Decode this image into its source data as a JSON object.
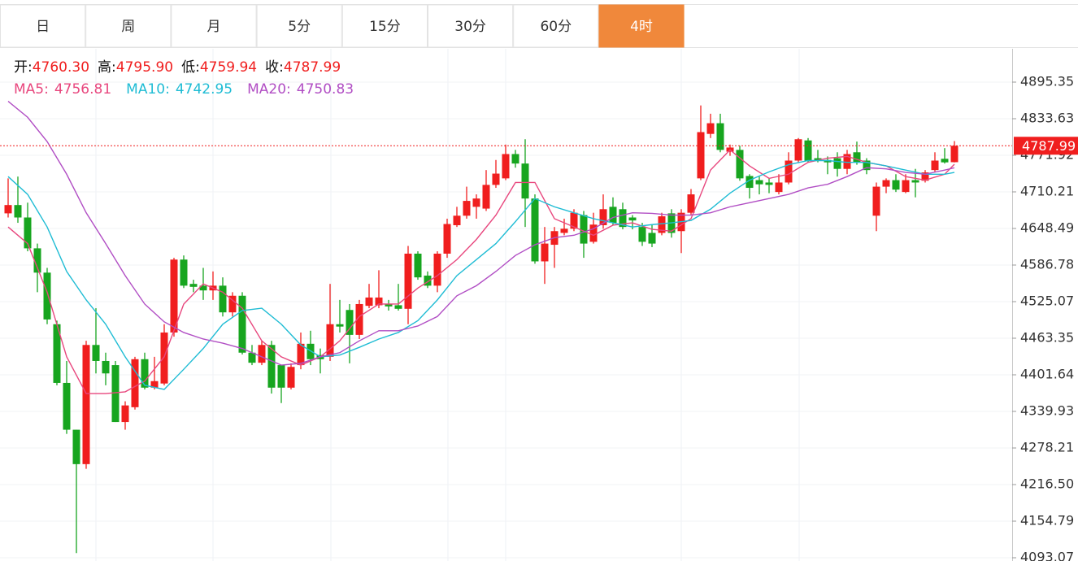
{
  "tabs": {
    "items": [
      "日",
      "周",
      "月",
      "5分",
      "15分",
      "30分",
      "60分",
      "4时"
    ],
    "active": 7,
    "active_color": "#f0883b"
  },
  "chart_data": {
    "type": "candlestick",
    "info": [
      {
        "label": "开:",
        "value": "4760.30"
      },
      {
        "label": "高:",
        "value": "4795.90"
      },
      {
        "label": "低:",
        "value": "4759.94"
      },
      {
        "label": "收:",
        "value": "4787.99"
      }
    ],
    "up_color": "#f01e1e",
    "down_color": "#17a51f",
    "candles": {
      "open": [
        4674,
        4688,
        4667,
        4615,
        4574,
        4487,
        4388,
        4309,
        4251,
        4452,
        4425,
        4418,
        4322,
        4347,
        4428,
        4380,
        4387,
        4473,
        4596,
        4555,
        4552,
        4544,
        4552,
        4507,
        4535,
        4439,
        4422,
        4452,
        4418,
        4380,
        4418,
        4454,
        4435,
        4432,
        4487,
        4511,
        4469,
        4518,
        4519,
        4521,
        4519,
        4513,
        4606,
        4569,
        4552,
        4606,
        4654,
        4670,
        4685,
        4682,
        4722,
        4733,
        4774,
        4758,
        4699,
        4593,
        4621,
        4641,
        4648,
        4671,
        4626,
        4654,
        4685,
        4681,
        4667,
        4651,
        4641,
        4641,
        4674,
        4644,
        4675,
        4733,
        4808,
        4826,
        4778,
        4781,
        4737,
        4730,
        4726,
        4710,
        4726,
        4763,
        4797,
        4767,
        4764,
        4767,
        4749,
        4777,
        4763,
        4670,
        4719,
        4730,
        4710,
        4730,
        4729,
        4747,
        4766,
        4760.3
      ],
      "high": [
        4733,
        4736,
        4692,
        4623,
        4582,
        4493,
        4425,
        4309,
        4459,
        4514,
        4439,
        4425,
        4357,
        4432,
        4439,
        4432,
        4487,
        4599,
        4603,
        4562,
        4582,
        4576,
        4566,
        4541,
        4541,
        4452,
        4459,
        4459,
        4418,
        4421,
        4473,
        4476,
        4446,
        4555,
        4528,
        4521,
        4528,
        4555,
        4578,
        4528,
        4555,
        4619,
        4610,
        4576,
        4610,
        4665,
        4685,
        4719,
        4706,
        4747,
        4764,
        4790,
        4781,
        4799,
        4706,
        4651,
        4651,
        4665,
        4681,
        4678,
        4675,
        4706,
        4701,
        4692,
        4671,
        4658,
        4654,
        4675,
        4681,
        4681,
        4715,
        4856,
        4842,
        4842,
        4790,
        4788,
        4740,
        4736,
        4733,
        4740,
        4777,
        4801,
        4801,
        4781,
        4770,
        4777,
        4781,
        4795,
        4767,
        4726,
        4733,
        4740,
        4740,
        4749,
        4747,
        4777,
        4784,
        4795.9
      ],
      "low": [
        4667,
        4658,
        4610,
        4541,
        4487,
        4384,
        4302,
        4101,
        4243,
        4404,
        4384,
        4322,
        4309,
        4343,
        4377,
        4377,
        4384,
        4466,
        4548,
        4541,
        4528,
        4528,
        4500,
        4500,
        4436,
        4418,
        4418,
        4370,
        4354,
        4377,
        4411,
        4418,
        4404,
        4425,
        4473,
        4421,
        4462,
        4514,
        4514,
        4510,
        4510,
        4487,
        4562,
        4548,
        4541,
        4599,
        4651,
        4665,
        4665,
        4678,
        4717,
        4730,
        4751,
        4651,
        4589,
        4555,
        4582,
        4637,
        4644,
        4599,
        4623,
        4648,
        4654,
        4647,
        4647,
        4619,
        4617,
        4637,
        4633,
        4607,
        4671,
        4730,
        4801,
        4777,
        4771,
        4729,
        4699,
        4706,
        4708,
        4706,
        4723,
        4760,
        4760,
        4760,
        4740,
        4736,
        4740,
        4756,
        4740,
        4644,
        4708,
        4710,
        4708,
        4701,
        4726,
        4744,
        4758,
        4759.94
      ],
      "close": [
        4688,
        4667,
        4615,
        4574,
        4495,
        4388,
        4309,
        4251,
        4452,
        4425,
        4404,
        4322,
        4350,
        4428,
        4380,
        4391,
        4473,
        4596,
        4552,
        4550,
        4544,
        4552,
        4507,
        4535,
        4439,
        4422,
        4452,
        4380,
        4380,
        4415,
        4454,
        4428,
        4428,
        4487,
        4483,
        4469,
        4521,
        4532,
        4532,
        4517,
        4513,
        4606,
        4566,
        4552,
        4606,
        4656,
        4670,
        4695,
        4699,
        4722,
        4741,
        4774,
        4758,
        4699,
        4593,
        4623,
        4644,
        4648,
        4675,
        4623,
        4655,
        4681,
        4658,
        4651,
        4662,
        4626,
        4623,
        4669,
        4641,
        4675,
        4706,
        4811,
        4826,
        4781,
        4785,
        4733,
        4717,
        4723,
        4722,
        4726,
        4763,
        4799,
        4763,
        4763,
        4760,
        4749,
        4774,
        4760,
        4747,
        4719,
        4730,
        4714,
        4730,
        4726,
        4743,
        4763,
        4760,
        4787.99
      ]
    },
    "series": [
      {
        "name": "MA5:",
        "legend_value": "4756.81",
        "color": "#e8477e",
        "x": [
          0,
          2,
          4,
          6,
          8,
          10,
          12,
          14,
          16,
          18,
          20,
          22,
          24,
          26,
          28,
          30,
          32,
          34,
          36,
          38,
          40,
          42,
          44,
          46,
          48,
          50,
          52,
          54,
          56,
          58,
          60,
          62,
          64,
          66,
          68,
          70,
          72,
          74,
          76,
          78,
          80,
          82,
          84,
          86,
          88,
          90,
          92,
          94,
          96,
          97
        ],
        "values": [
          4651,
          4623,
          4541,
          4432,
          4370,
          4370,
          4373,
          4391,
          4432,
          4521,
          4555,
          4541,
          4514,
          4459,
          4432,
          4418,
          4432,
          4459,
          4500,
          4521,
          4521,
          4548,
          4569,
          4596,
          4630,
          4671,
          4726,
          4726,
          4665,
          4651,
          4637,
          4654,
          4658,
          4647,
          4644,
          4665,
          4747,
          4781,
          4754,
          4733,
          4740,
          4760,
          4767,
          4770,
          4760,
          4754,
          4736,
          4730,
          4740,
          4756.81
        ]
      },
      {
        "name": "MA10:",
        "legend_value": "4742.95",
        "color": "#1fbcd4",
        "x": [
          0,
          2,
          4,
          6,
          8,
          10,
          12,
          14,
          16,
          18,
          20,
          22,
          24,
          26,
          28,
          30,
          32,
          34,
          36,
          38,
          40,
          42,
          44,
          46,
          48,
          50,
          52,
          54,
          56,
          58,
          60,
          62,
          64,
          66,
          68,
          70,
          72,
          74,
          76,
          78,
          80,
          82,
          84,
          86,
          88,
          90,
          92,
          94,
          96,
          97
        ],
        "values": [
          4736,
          4706,
          4651,
          4576,
          4528,
          4487,
          4432,
          4384,
          4377,
          4411,
          4446,
          4487,
          4510,
          4514,
          4487,
          4452,
          4432,
          4435,
          4448,
          4462,
          4473,
          4493,
          4528,
          4569,
          4596,
          4623,
          4660,
          4699,
          4685,
          4675,
          4665,
          4658,
          4651,
          4655,
          4658,
          4662,
          4681,
          4708,
          4730,
          4744,
          4756,
          4763,
          4763,
          4760,
          4760,
          4754,
          4747,
          4740,
          4740,
          4742.95
        ]
      },
      {
        "name": "MA20:",
        "legend_value": "4750.83",
        "color": "#b14ec4",
        "x": [
          0,
          2,
          4,
          6,
          8,
          10,
          12,
          14,
          16,
          18,
          20,
          22,
          24,
          26,
          28,
          30,
          32,
          34,
          36,
          38,
          40,
          42,
          44,
          46,
          48,
          50,
          52,
          54,
          56,
          58,
          60,
          62,
          64,
          66,
          68,
          70,
          72,
          74,
          76,
          78,
          80,
          82,
          84,
          86,
          88,
          90,
          92,
          94,
          96,
          97
        ],
        "values": [
          4863,
          4836,
          4795,
          4740,
          4675,
          4623,
          4569,
          4521,
          4491,
          4473,
          4462,
          4455,
          4446,
          4432,
          4418,
          4421,
          4432,
          4439,
          4459,
          4476,
          4476,
          4484,
          4500,
          4535,
          4552,
          4576,
          4603,
          4621,
          4633,
          4637,
          4648,
          4667,
          4675,
          4674,
          4671,
          4671,
          4675,
          4685,
          4692,
          4699,
          4706,
          4717,
          4723,
          4736,
          4751,
          4749,
          4743,
          4740,
          4747,
          4750.83
        ]
      }
    ],
    "ylim": [
      4087.6,
      4954.3
    ],
    "yticks": [
      4093.07,
      4154.79,
      {
        "value": 4216.5,
        "label": "4216.50"
      },
      4278.21,
      4339.93,
      4401.64,
      4463.35,
      4525.07,
      4586.78,
      4648.49,
      4710.21,
      4771.92,
      4833.63,
      4895.35
    ],
    "grid": true,
    "price_line_color": "#f01e1e"
  }
}
